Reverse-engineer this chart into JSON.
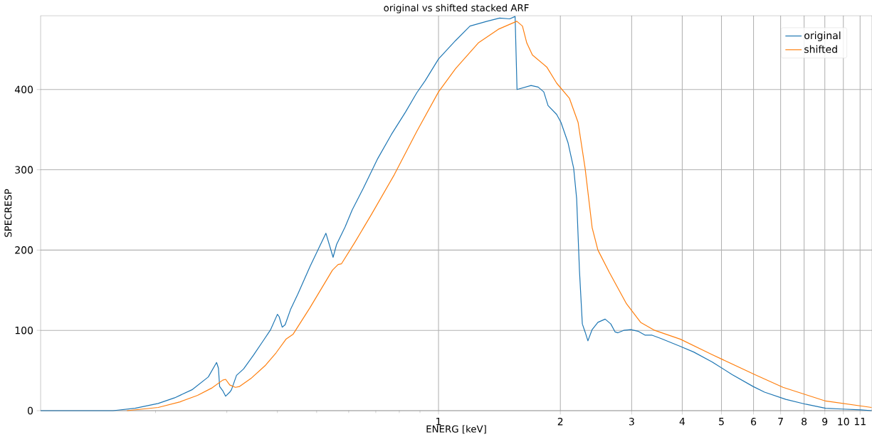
{
  "chart_data": {
    "type": "line",
    "title": "original vs shifted stacked ARF",
    "xlabel": "ENERG [keV]",
    "ylabel": "SPECRESP",
    "log": "x",
    "grid": true,
    "legend": "top right",
    "xlim": [
      0.104,
      11.77
    ],
    "ylim": [
      0,
      492
    ],
    "xticks": [
      {
        "value": 0.2,
        "label": null
      },
      {
        "value": 0.3,
        "label": null
      },
      {
        "value": 0.4,
        "label": null
      },
      {
        "value": 0.5,
        "label": null
      },
      {
        "value": 0.6,
        "label": null
      },
      {
        "value": 0.7,
        "label": null
      },
      {
        "value": 0.8,
        "label": null
      },
      {
        "value": 0.9,
        "label": null
      },
      1,
      2,
      3,
      4,
      5,
      6,
      7,
      8,
      9,
      10,
      11
    ],
    "yticks": [
      0,
      100,
      200,
      300,
      400
    ],
    "series": [
      {
        "name": "original",
        "color": "#1f77b4",
        "x": [
          0.104,
          0.157,
          0.178,
          0.203,
          0.223,
          0.246,
          0.27,
          0.283,
          0.286,
          0.288,
          0.293,
          0.298,
          0.305,
          0.308,
          0.317,
          0.33,
          0.349,
          0.37,
          0.385,
          0.4,
          0.404,
          0.411,
          0.418,
          0.431,
          0.449,
          0.481,
          0.527,
          0.549,
          0.56,
          0.588,
          0.612,
          0.652,
          0.706,
          0.765,
          0.829,
          0.884,
          0.927,
          1.0,
          1.102,
          1.196,
          1.318,
          1.416,
          1.499,
          1.546,
          1.563,
          1.693,
          1.763,
          1.82,
          1.865,
          1.958,
          2.007,
          2.088,
          2.157,
          2.194,
          2.229,
          2.266,
          2.302,
          2.339,
          2.396,
          2.476,
          2.58,
          2.664,
          2.731,
          2.775,
          2.866,
          2.985,
          3.11,
          3.24,
          3.37,
          3.54,
          3.96,
          4.27,
          4.73,
          5.31,
          5.99,
          6.39,
          7.21,
          8.08,
          9.04,
          9.96,
          11.07,
          11.74
        ],
        "values": [
          0,
          0,
          3,
          9,
          16,
          26,
          42,
          60,
          53,
          30,
          25,
          18,
          23,
          26,
          44,
          52,
          69,
          88,
          101,
          120,
          117,
          104,
          107,
          126,
          145,
          179,
          221,
          191,
          207,
          229,
          250,
          277,
          313,
          344,
          372,
          396,
          411,
          438,
          461,
          479,
          485,
          489,
          488,
          491,
          400,
          405,
          403,
          397,
          380,
          369,
          359,
          334,
          302,
          264,
          175,
          108,
          98,
          87,
          101,
          110,
          114,
          108,
          98,
          97,
          100,
          101,
          99,
          94,
          94,
          90,
          80,
          73,
          61,
          45,
          30,
          23,
          14,
          8,
          3,
          2,
          1,
          0
        ]
      },
      {
        "name": "shifted",
        "color": "#ff7f0e",
        "x": [
          0.17,
          0.203,
          0.23,
          0.254,
          0.275,
          0.293,
          0.298,
          0.305,
          0.315,
          0.322,
          0.344,
          0.373,
          0.397,
          0.42,
          0.437,
          0.481,
          0.547,
          0.565,
          0.576,
          0.622,
          0.684,
          0.778,
          0.884,
          1.0,
          1.102,
          1.254,
          1.405,
          1.561,
          1.612,
          1.652,
          1.706,
          1.851,
          1.958,
          2.106,
          2.212,
          2.302,
          2.396,
          2.476,
          2.644,
          2.914,
          3.157,
          3.42,
          3.96,
          4.73,
          6.04,
          7.1,
          9.04,
          11.74
        ],
        "values": [
          0,
          4,
          11,
          19,
          28,
          38,
          39,
          32,
          29,
          30,
          40,
          56,
          72,
          89,
          95,
          128,
          175,
          182,
          183,
          210,
          245,
          294,
          348,
          397,
          426,
          458,
          475,
          485,
          479,
          458,
          443,
          428,
          408,
          389,
          359,
          302,
          228,
          200,
          172,
          133,
          110,
          100,
          89,
          70,
          45,
          29,
          12,
          4
        ]
      }
    ]
  }
}
